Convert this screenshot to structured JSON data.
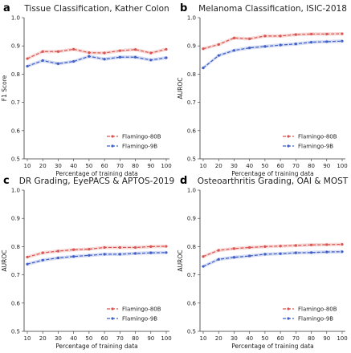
{
  "chart_data": [
    {
      "type": "line",
      "panel": "a",
      "title": "Tissue Classification, Kather Colon",
      "xlabel": "Percentage of training data",
      "ylabel": "F1 Score",
      "x": [
        10,
        20,
        30,
        40,
        50,
        60,
        70,
        80,
        90,
        100
      ],
      "xticks": [
        "10",
        "20",
        "30",
        "40",
        "50",
        "60",
        "70",
        "80",
        "90",
        "100"
      ],
      "ylim": [
        0.5,
        1.0
      ],
      "yticks": [
        "0.5",
        "0.6",
        "0.7",
        "0.8",
        "0.9",
        "1.0"
      ],
      "legend_position": "bottom-right",
      "series": [
        {
          "name": "Flamingo-80B",
          "color": "#d9534f",
          "values": [
            0.855,
            0.88,
            0.88,
            0.888,
            0.876,
            0.875,
            0.883,
            0.887,
            0.875,
            0.888
          ]
        },
        {
          "name": "Flamingo-9B",
          "color": "#3f5fc7",
          "values": [
            0.828,
            0.848,
            0.837,
            0.845,
            0.863,
            0.853,
            0.86,
            0.86,
            0.85,
            0.858
          ]
        }
      ]
    },
    {
      "type": "line",
      "panel": "b",
      "title": "Melanoma Classification, ISIC-2018",
      "xlabel": "Percentage of training data",
      "ylabel": "AUROC",
      "x": [
        10,
        20,
        30,
        40,
        50,
        60,
        70,
        80,
        90,
        100
      ],
      "xticks": [
        "10",
        "20",
        "30",
        "40",
        "50",
        "60",
        "70",
        "80",
        "90",
        "100"
      ],
      "ylim": [
        0.5,
        1.0
      ],
      "yticks": [
        "0.5",
        "0.6",
        "0.7",
        "0.8",
        "0.9",
        "1.0"
      ],
      "legend_position": "bottom-right",
      "series": [
        {
          "name": "Flamingo-80B",
          "color": "#d9534f",
          "values": [
            0.89,
            0.905,
            0.928,
            0.925,
            0.935,
            0.935,
            0.94,
            0.942,
            0.942,
            0.943
          ]
        },
        {
          "name": "Flamingo-9B",
          "color": "#3f5fc7",
          "values": [
            0.822,
            0.866,
            0.884,
            0.893,
            0.898,
            0.903,
            0.907,
            0.913,
            0.915,
            0.917
          ]
        }
      ]
    },
    {
      "type": "line",
      "panel": "c",
      "title": "DR Grading, EyePACS & APTOS-2019",
      "xlabel": "Percentage of training data",
      "ylabel": "AUROC",
      "x": [
        10,
        20,
        30,
        40,
        50,
        60,
        70,
        80,
        90,
        100
      ],
      "xticks": [
        "10",
        "20",
        "30",
        "40",
        "50",
        "60",
        "70",
        "80",
        "90",
        "100"
      ],
      "ylim": [
        0.5,
        1.0
      ],
      "yticks": [
        "0.5",
        "0.6",
        "0.7",
        "0.8",
        "0.9",
        "1.0"
      ],
      "legend_position": "bottom-right",
      "series": [
        {
          "name": "Flamingo-80B",
          "color": "#d9534f",
          "values": [
            0.763,
            0.778,
            0.784,
            0.789,
            0.791,
            0.797,
            0.797,
            0.797,
            0.8,
            0.801
          ]
        },
        {
          "name": "Flamingo-9B",
          "color": "#3f5fc7",
          "values": [
            0.738,
            0.752,
            0.76,
            0.765,
            0.769,
            0.773,
            0.773,
            0.776,
            0.778,
            0.779
          ]
        }
      ]
    },
    {
      "type": "line",
      "panel": "d",
      "title": "Osteoarthritis Grading, OAI & MOST",
      "xlabel": "Percentage of training data",
      "ylabel": "AUROC",
      "x": [
        10,
        20,
        30,
        40,
        50,
        60,
        70,
        80,
        90,
        100
      ],
      "xticks": [
        "10",
        "20",
        "30",
        "40",
        "50",
        "60",
        "70",
        "80",
        "90",
        "100"
      ],
      "ylim": [
        0.5,
        1.0
      ],
      "yticks": [
        "0.5",
        "0.6",
        "0.7",
        "0.8",
        "0.9",
        "1.0"
      ],
      "legend_position": "bottom-right",
      "series": [
        {
          "name": "Flamingo-80B",
          "color": "#d9534f",
          "values": [
            0.765,
            0.787,
            0.793,
            0.797,
            0.8,
            0.802,
            0.804,
            0.806,
            0.807,
            0.808
          ]
        },
        {
          "name": "Flamingo-9B",
          "color": "#3f5fc7",
          "values": [
            0.73,
            0.755,
            0.762,
            0.767,
            0.773,
            0.775,
            0.778,
            0.779,
            0.781,
            0.782
          ]
        }
      ]
    }
  ]
}
